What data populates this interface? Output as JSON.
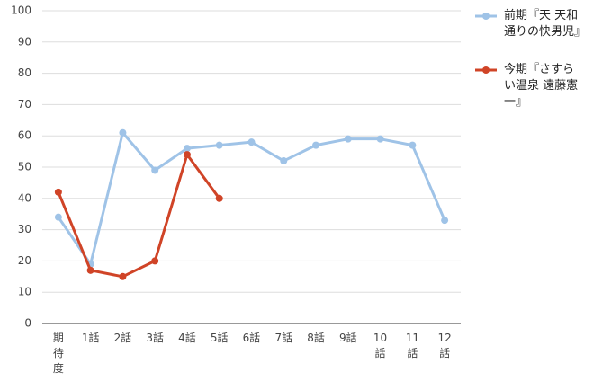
{
  "chart_data": {
    "type": "line",
    "categories": [
      "期待度",
      "1話",
      "2話",
      "3話",
      "4話",
      "5話",
      "6話",
      "7話",
      "8話",
      "9話",
      "10話",
      "11話",
      "12話"
    ],
    "series": [
      {
        "name": "前期『天 天和通りの快男児』",
        "color": "#9fc3e7",
        "values": [
          34,
          19,
          61,
          49,
          56,
          57,
          58,
          52,
          57,
          59,
          59,
          57,
          33
        ]
      },
      {
        "name": "今期『さすらい温泉 遠藤憲一』",
        "color": "#d04427",
        "values": [
          42,
          17,
          15,
          20,
          54,
          40,
          null,
          null,
          null,
          null,
          null,
          null,
          null
        ]
      }
    ],
    "ylim": [
      0,
      100
    ],
    "yticks": [
      0,
      10,
      20,
      30,
      40,
      50,
      60,
      70,
      80,
      90,
      100
    ],
    "grid": true,
    "legend": "right"
  }
}
